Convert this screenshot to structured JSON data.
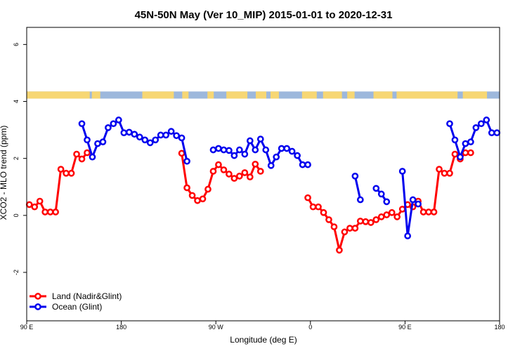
{
  "chart_data": {
    "type": "line",
    "title": "45N-50N May (Ver 10_MIP)   2015-01-01 to 2020-12-31",
    "xlabel": "Longitude (deg E)",
    "ylabel": "XCO2 - MLO trend (ppm)",
    "xlim": [
      90,
      450
    ],
    "ylim": [
      -3.7,
      6.6
    ],
    "x_ticks": [
      {
        "value": 90,
        "label": "90 E"
      },
      {
        "value": 180,
        "label": "180"
      },
      {
        "value": 270,
        "label": "90 W"
      },
      {
        "value": 360,
        "label": "0"
      },
      {
        "value": 450,
        "label": "90 E"
      },
      {
        "value": 540,
        "label": "180"
      }
    ],
    "y_ticks": [
      {
        "value": -2,
        "label": "-2"
      },
      {
        "value": 0,
        "label": "0"
      },
      {
        "value": 2,
        "label": "2"
      },
      {
        "value": 4,
        "label": "4"
      },
      {
        "value": 6,
        "label": "6"
      }
    ],
    "x_extent": [
      90,
      540
    ],
    "y_extent": [
      -3.7,
      6.6
    ],
    "land_ocean_strip": {
      "y_range": [
        4.1,
        4.35
      ],
      "land_color": "#f7d774",
      "ocean_color": "#9db8dc"
    },
    "legend_position": "bottom-left",
    "series": [
      {
        "name": "Land (Nadir&Glint)",
        "color": "#ff0000",
        "segments": [
          {
            "x": [
              92.5,
              97.5,
              102.5,
              107.5,
              112.5,
              117.5,
              122.5,
              127.5,
              132.5,
              137.5,
              142.5,
              147.5
            ],
            "y": [
              0.38,
              0.3,
              0.5,
              0.12,
              0.12,
              0.12,
              1.62,
              1.48,
              1.48,
              2.15,
              1.98,
              2.2
            ]
          },
          {
            "x": [
              237.5,
              242.5,
              247.5,
              252.5,
              257.5,
              262.5,
              267.5,
              272.5,
              277.5,
              282.5,
              287.5,
              292.5,
              297.5,
              302.5,
              307.5,
              312.5
            ],
            "y": [
              2.18,
              0.97,
              0.7,
              0.52,
              0.58,
              0.92,
              1.55,
              1.78,
              1.6,
              1.45,
              1.3,
              1.38,
              1.5,
              1.35,
              1.8,
              1.55
            ]
          },
          {
            "x": [
              357.5,
              362.5,
              367.5,
              372.5,
              377.5,
              382.5,
              387.5,
              392.5,
              397.5,
              402.5,
              407.5,
              412.5,
              417.5,
              422.5,
              427.5,
              432.5,
              437.5,
              442.5,
              447.5,
              452.5,
              457.5,
              462.5,
              467.5,
              472.5,
              477.5,
              482.5,
              487.5,
              492.5,
              497.5,
              502.5,
              507.5,
              512.5
            ],
            "y": [
              0.62,
              0.3,
              0.3,
              0.1,
              -0.15,
              -0.4,
              -1.22,
              -0.58,
              -0.45,
              -0.45,
              -0.2,
              -0.22,
              -0.25,
              -0.15,
              -0.05,
              0.02,
              0.1,
              -0.05,
              0.22,
              0.38,
              0.3,
              0.5,
              0.12,
              0.12,
              0.12,
              1.62,
              1.48,
              1.48,
              2.15,
              1.98,
              2.2,
              2.2
            ]
          }
        ]
      },
      {
        "name": "Ocean (Glint)",
        "color": "#0000ee",
        "segments": [
          {
            "x": [
              142.5,
              147.5,
              152.5,
              157.5,
              162.5,
              167.5,
              172.5,
              177.5,
              182.5,
              187.5,
              192.5,
              197.5,
              202.5,
              207.5,
              212.5,
              217.5,
              222.5,
              227.5,
              232.5,
              237.5,
              242.5
            ],
            "y": [
              3.22,
              2.65,
              2.05,
              2.52,
              2.58,
              3.08,
              3.22,
              3.35,
              2.9,
              2.92,
              2.85,
              2.75,
              2.65,
              2.55,
              2.65,
              2.82,
              2.82,
              2.95,
              2.8,
              2.72,
              1.9
            ]
          },
          {
            "x": [
              267.5,
              272.5,
              277.5,
              282.5,
              287.5,
              292.5,
              297.5,
              302.5,
              307.5,
              312.5,
              317.5,
              322.5,
              327.5,
              332.5,
              337.5,
              342.5,
              347.5,
              352.5,
              357.5
            ],
            "y": [
              2.3,
              2.35,
              2.3,
              2.28,
              2.1,
              2.3,
              2.15,
              2.62,
              2.3,
              2.68,
              2.3,
              1.75,
              2.05,
              2.35,
              2.35,
              2.25,
              2.1,
              1.78,
              1.78
            ]
          },
          {
            "x": [
              402.5,
              407.5
            ],
            "y": [
              1.38,
              0.55
            ]
          },
          {
            "x": [
              422.5,
              427.5,
              432.5
            ],
            "y": [
              0.95,
              0.75,
              0.48
            ]
          },
          {
            "x": [
              447.5,
              452.5,
              457.5,
              462.5
            ],
            "y": [
              1.55,
              -0.72,
              0.55,
              0.4
            ]
          },
          {
            "x": [
              492.5,
              497.5,
              502.5,
              507.5,
              512.5,
              517.5,
              522.5,
              527.5,
              532.5,
              537.5
            ],
            "y": [
              3.22,
              2.65,
              2.05,
              2.52,
              2.58,
              3.08,
              3.22,
              3.35,
              2.9,
              2.9
            ]
          }
        ]
      }
    ]
  }
}
